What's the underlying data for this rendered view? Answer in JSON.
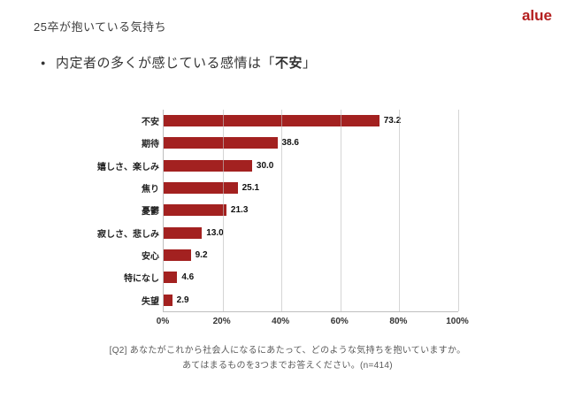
{
  "page": {
    "title": "25卒が抱いている気持ち",
    "logo": "alue",
    "bullet": {
      "dot": "●",
      "prefix": "内定者の多くが感じている感情は「",
      "emphasis": "不安",
      "suffix": "」"
    }
  },
  "chart_data": {
    "type": "bar",
    "orientation": "horizontal",
    "title": "",
    "categories": [
      "不安",
      "期待",
      "嬉しさ、楽しみ",
      "焦り",
      "憂鬱",
      "寂しさ、悲しみ",
      "安心",
      "特になし",
      "失望"
    ],
    "values": [
      73.2,
      38.6,
      30.0,
      25.1,
      21.3,
      13.0,
      9.2,
      4.6,
      2.9
    ],
    "value_labels": [
      "73.2",
      "38.6",
      "30.0",
      "25.1",
      "21.3",
      "13.0",
      "9.2",
      "4.6",
      "2.9"
    ],
    "x_ticks": [
      "0%",
      "20%",
      "40%",
      "60%",
      "80%",
      "100%"
    ],
    "xlim": [
      0,
      100
    ],
    "bar_color": "#a32120",
    "grid": true,
    "legend": "none"
  },
  "caption": {
    "line1": "[Q2] あなたがこれから社会人になるにあたって、どのような気持ちを抱いていますか。",
    "line2": "あてはまるものを3つまでお答えください。(n=414)"
  }
}
